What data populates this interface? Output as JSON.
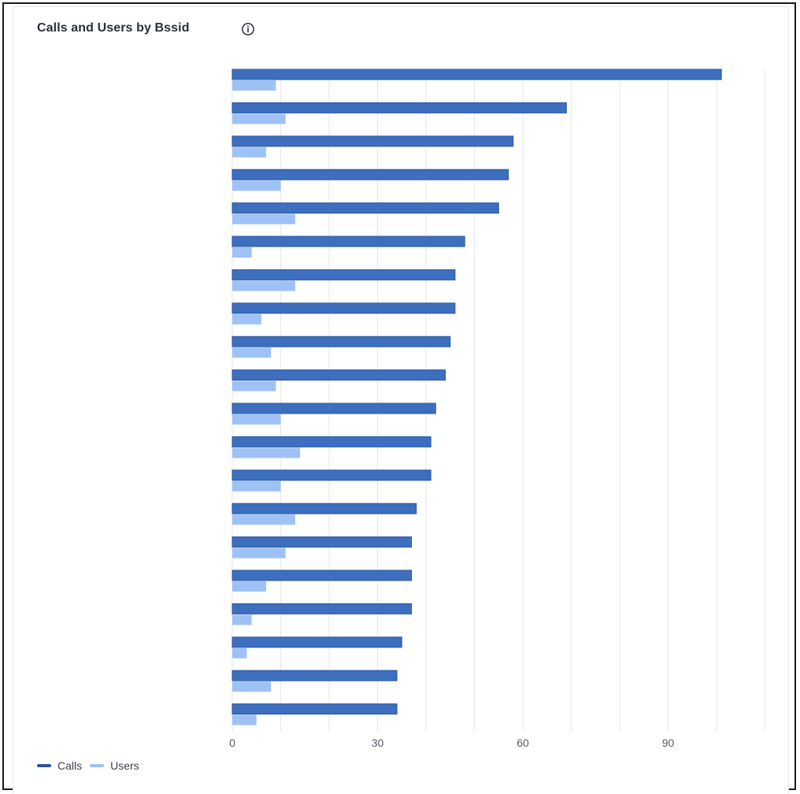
{
  "title": "Calls and Users by Bssid",
  "icons": {
    "info": "info-circle-icon"
  },
  "colors": {
    "calls": "#3d6fbe",
    "calls_border": "#2a55a0",
    "users": "#9ec2f5",
    "grid": "#e4e6ea",
    "tick": "#555b63"
  },
  "chart_data": {
    "type": "bar",
    "orientation": "horizontal",
    "categories": [
      "",
      "",
      "",
      "",
      "",
      "",
      "",
      "",
      "",
      "",
      "",
      "",
      "",
      "",
      "",
      "",
      "",
      "",
      "",
      ""
    ],
    "series": [
      {
        "name": "Calls",
        "values": [
          101,
          69,
          58,
          57,
          55,
          48,
          46,
          46,
          45,
          44,
          42,
          41,
          41,
          38,
          37,
          37,
          37,
          35,
          34,
          34
        ]
      },
      {
        "name": "Users",
        "values": [
          9,
          11,
          7,
          10,
          13,
          4,
          13,
          6,
          8,
          9,
          10,
          14,
          10,
          13,
          11,
          7,
          4,
          3,
          8,
          5
        ]
      }
    ],
    "x_ticks": [
      "0",
      "30",
      "60",
      "90"
    ],
    "xlim": [
      0,
      110
    ],
    "grid": true,
    "legend_position": "bottom-left"
  },
  "legend": {
    "calls": "Calls",
    "users": "Users"
  }
}
